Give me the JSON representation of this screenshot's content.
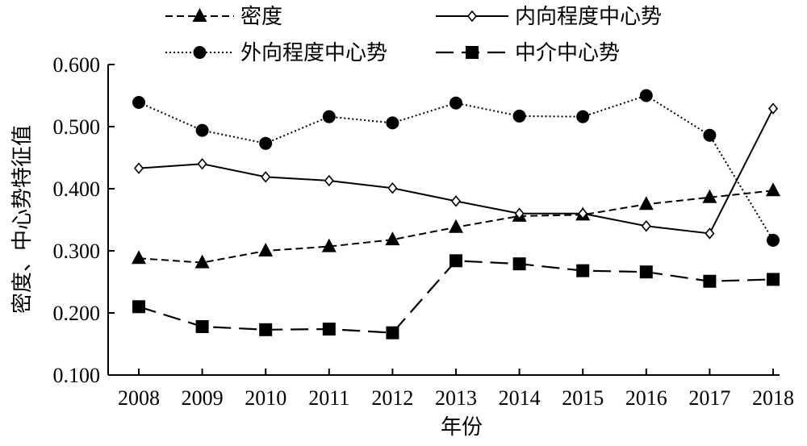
{
  "chart_data": {
    "type": "line",
    "title": "",
    "xlabel": "年份",
    "ylabel": "密度、中心势特征值",
    "categories": [
      "2008",
      "2009",
      "2010",
      "2011",
      "2012",
      "2013",
      "2014",
      "2015",
      "2016",
      "2017",
      "2018"
    ],
    "ylim": [
      0.1,
      0.6
    ],
    "yticks": [
      "0.100",
      "0.200",
      "0.300",
      "0.400",
      "0.500",
      "0.600"
    ],
    "grid": false,
    "legend_position": "top",
    "series": [
      {
        "name": "密度",
        "marker": "triangle",
        "line_style": "dashed",
        "values": [
          0.288,
          0.281,
          0.3,
          0.307,
          0.318,
          0.338,
          0.356,
          0.358,
          0.375,
          0.386,
          0.397
        ]
      },
      {
        "name": "内向程度中心势",
        "marker": "diamond-open",
        "line_style": "solid",
        "values": [
          0.433,
          0.44,
          0.419,
          0.413,
          0.401,
          0.38,
          0.36,
          0.36,
          0.34,
          0.328,
          0.529
        ]
      },
      {
        "name": "外向程度中心势",
        "marker": "circle",
        "line_style": "dotted",
        "values": [
          0.539,
          0.494,
          0.473,
          0.516,
          0.506,
          0.538,
          0.517,
          0.516,
          0.55,
          0.486,
          0.317
        ]
      },
      {
        "name": "中介中心势",
        "marker": "square",
        "line_style": "long-dash",
        "values": [
          0.21,
          0.178,
          0.173,
          0.174,
          0.168,
          0.284,
          0.279,
          0.268,
          0.266,
          0.251,
          0.254
        ]
      }
    ]
  }
}
